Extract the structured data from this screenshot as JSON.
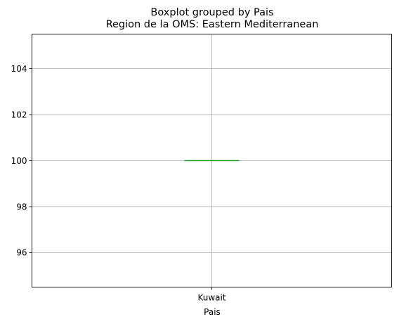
{
  "chart_data": {
    "type": "box",
    "suptitle": "Boxplot grouped by Pais",
    "title": "Region de la OMS: Eastern Mediterranean",
    "xlabel": "Pais",
    "ylabel": "",
    "categories": [
      "Kuwait"
    ],
    "boxes": [
      {
        "category": "Kuwait",
        "whislo": 100,
        "q1": 100,
        "median": 100,
        "q3": 100,
        "whishi": 100
      }
    ],
    "ylim": [
      94.5,
      105.5
    ],
    "yticks": [
      96,
      98,
      100,
      102,
      104
    ],
    "grid": true,
    "colors": {
      "box": "#1f77b4",
      "median": "#2ca02c",
      "grid": "#b0b0b0",
      "axes": "#000000"
    }
  }
}
